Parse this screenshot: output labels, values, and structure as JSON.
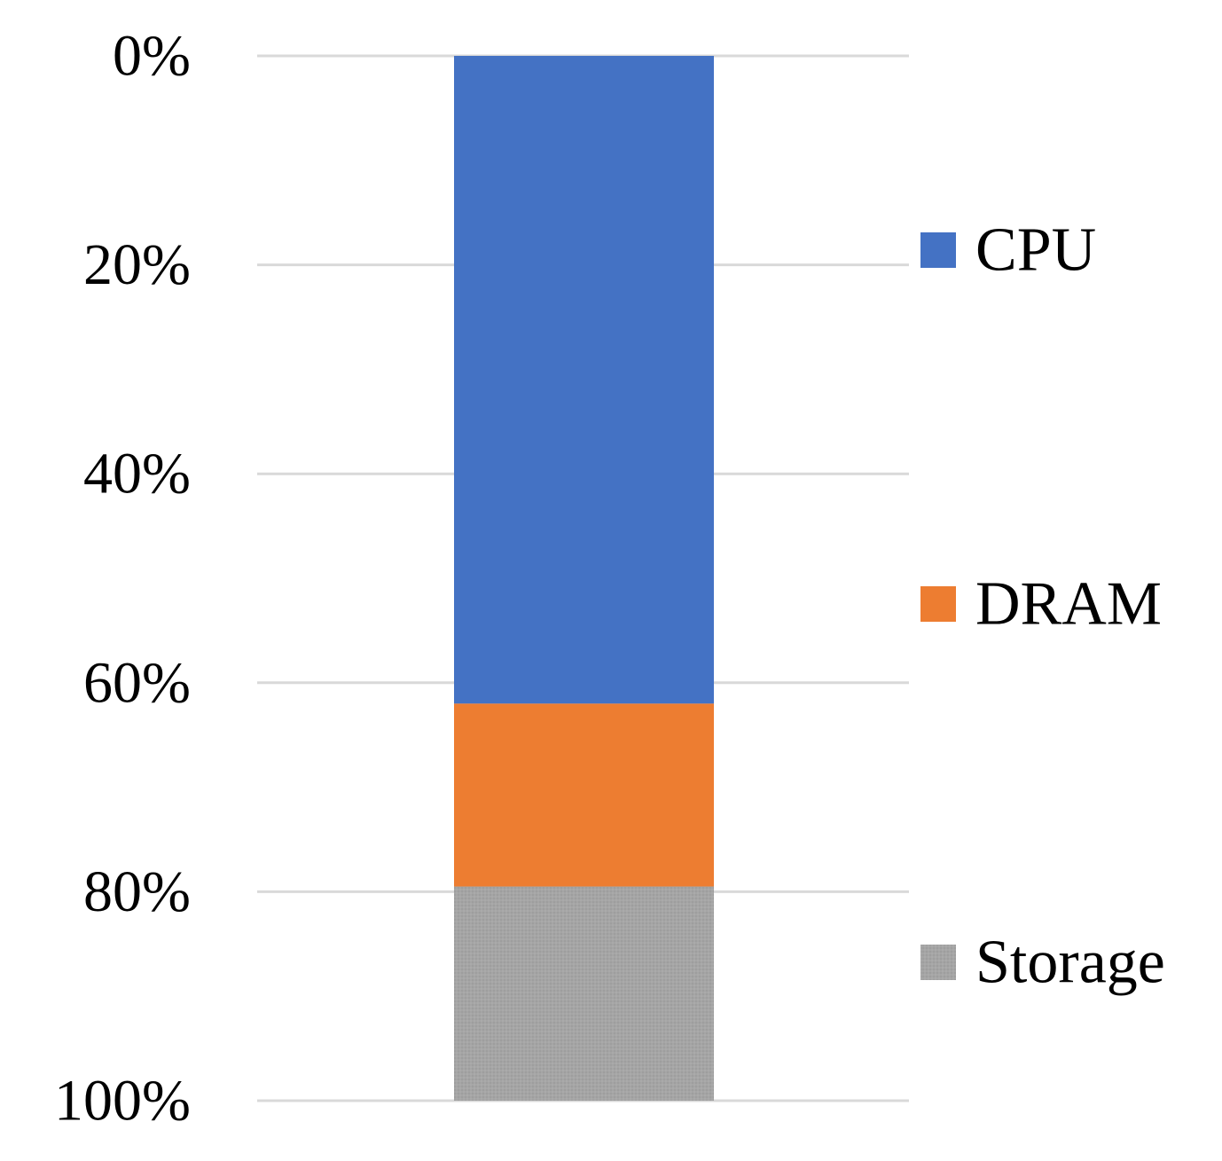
{
  "chart_data": {
    "type": "bar",
    "stacked": true,
    "orientation": "vertical",
    "y_axis_inverted": true,
    "categories": [
      ""
    ],
    "series": [
      {
        "name": "CPU",
        "values": [
          62
        ],
        "color": "#4472c4"
      },
      {
        "name": "DRAM",
        "values": [
          17.5
        ],
        "color": "#ed7d31"
      },
      {
        "name": "Storage",
        "values": [
          20.5
        ],
        "color": "#a5a5a5"
      }
    ],
    "title": "",
    "xlabel": "",
    "ylabel": "",
    "ylim": [
      0,
      100
    ],
    "yticks": [
      "0%",
      "20%",
      "40%",
      "60%",
      "80%",
      "100%"
    ],
    "grid": true,
    "legend_position": "right"
  }
}
